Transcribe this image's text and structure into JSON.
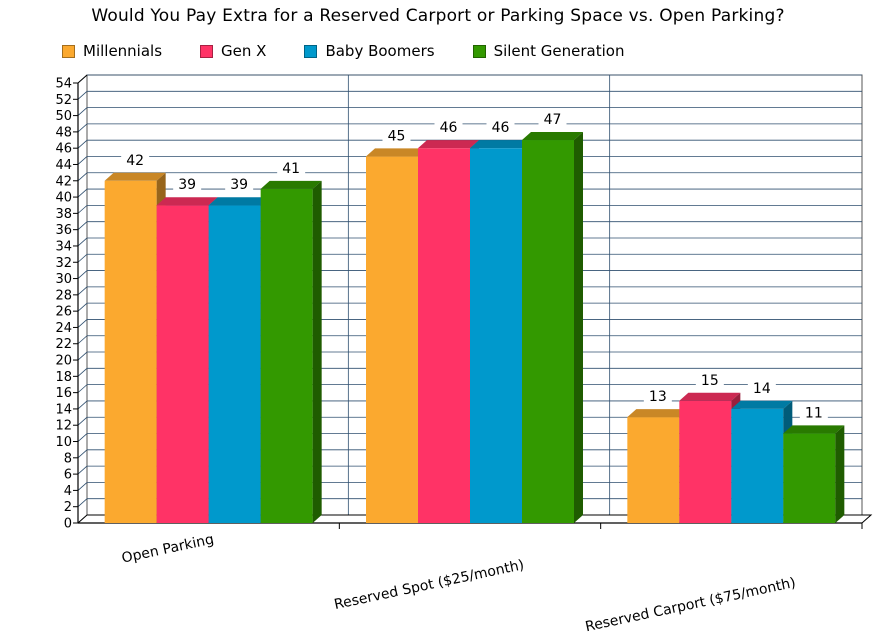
{
  "chart_data": {
    "type": "bar",
    "title": "Would You Pay Extra for a Reserved Carport or Parking Space vs. Open Parking?",
    "categories": [
      "Open Parking",
      "Reserved Spot ($25/month)",
      "Reserved Carport ($75/month)"
    ],
    "series": [
      {
        "name": "Millennials",
        "color": "#FBA92F",
        "values": [
          42,
          45,
          13
        ]
      },
      {
        "name": "Gen X",
        "color": "#FF3366",
        "values": [
          39,
          46,
          15
        ]
      },
      {
        "name": "Baby Boomers",
        "color": "#0099CC",
        "values": [
          39,
          46,
          14
        ]
      },
      {
        "name": "Silent Generation",
        "color": "#339900",
        "values": [
          41,
          47,
          11
        ]
      }
    ],
    "ylim": [
      0,
      54
    ],
    "ytick_step": 2,
    "yticks": [
      "0",
      "2",
      "4",
      "6",
      "8",
      "10",
      "12",
      "14",
      "16",
      "18",
      "20",
      "22",
      "24",
      "26",
      "28",
      "30",
      "32",
      "34",
      "36",
      "38",
      "40",
      "42",
      "44",
      "46",
      "48",
      "50",
      "52",
      "54"
    ],
    "grid": true,
    "legend_position": "top"
  }
}
